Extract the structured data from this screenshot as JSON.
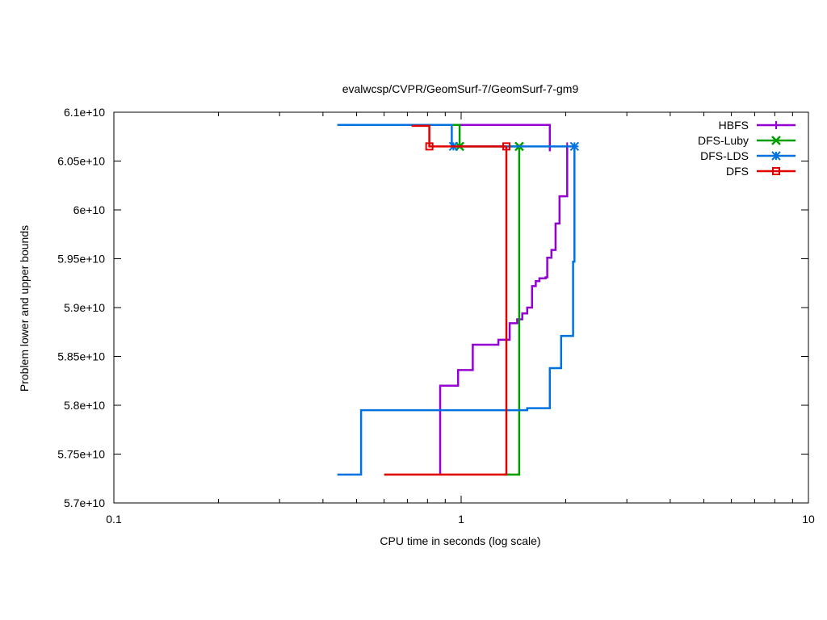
{
  "chart_data": {
    "type": "line",
    "title": "evalwcsp/CVPR/GeomSurf-7/GeomSurf-7-gm9",
    "xlabel": "CPU time in seconds (log scale)",
    "ylabel": "Problem lower and upper bounds",
    "xscale": "log",
    "xlim": [
      0.1,
      10
    ],
    "ylim": [
      57000000000,
      61000000000
    ],
    "xticks": [
      0.1,
      1,
      10
    ],
    "xtick_labels": [
      "0.1",
      "1",
      "10"
    ],
    "yticks": [
      57000000000,
      57500000000,
      58000000000,
      58500000000,
      59000000000,
      59500000000,
      60000000000,
      60500000000,
      61000000000
    ],
    "ytick_labels": [
      "5.7e+10",
      "5.75e+10",
      "5.8e+10",
      "5.85e+10",
      "5.9e+10",
      "5.95e+10",
      "6e+10",
      "6.05e+10",
      "6.1e+10"
    ],
    "grid": false,
    "legend_position": "top-right",
    "series": [
      {
        "name": "HBFS",
        "color": "#9400d3",
        "marker": "plus",
        "marker_points": [
          [
            2.02,
            60650000000
          ]
        ],
        "upper": [
          [
            0.84,
            60870000000
          ],
          [
            1.8,
            60870000000
          ],
          [
            1.8,
            60600000000
          ]
        ],
        "lower": [
          [
            0.87,
            57290000000
          ],
          [
            0.87,
            58200000000
          ],
          [
            0.98,
            58200000000
          ],
          [
            0.98,
            58360000000
          ],
          [
            1.08,
            58360000000
          ],
          [
            1.08,
            58620000000
          ],
          [
            1.28,
            58620000000
          ],
          [
            1.28,
            58670000000
          ],
          [
            1.38,
            58670000000
          ],
          [
            1.38,
            58840000000
          ],
          [
            1.45,
            58840000000
          ],
          [
            1.45,
            58880000000
          ],
          [
            1.5,
            58880000000
          ],
          [
            1.5,
            58940000000
          ],
          [
            1.55,
            58940000000
          ],
          [
            1.55,
            59000000000
          ],
          [
            1.6,
            59000000000
          ],
          [
            1.6,
            59220000000
          ],
          [
            1.64,
            59220000000
          ],
          [
            1.64,
            59270000000
          ],
          [
            1.68,
            59270000000
          ],
          [
            1.68,
            59300000000
          ],
          [
            1.75,
            59300000000
          ],
          [
            1.75,
            59310000000
          ],
          [
            1.77,
            59310000000
          ],
          [
            1.77,
            59510000000
          ],
          [
            1.82,
            59510000000
          ],
          [
            1.82,
            59590000000
          ],
          [
            1.87,
            59590000000
          ],
          [
            1.87,
            59860000000
          ],
          [
            1.92,
            59860000000
          ],
          [
            1.92,
            60140000000
          ],
          [
            2.02,
            60140000000
          ],
          [
            2.02,
            60650000000
          ]
        ]
      },
      {
        "name": "DFS-Luby",
        "color": "#009e00",
        "marker": "cross",
        "marker_points": [
          [
            0.99,
            60650000000
          ],
          [
            1.47,
            60650000000
          ]
        ],
        "upper": [
          [
            0.72,
            60870000000
          ],
          [
            0.99,
            60870000000
          ],
          [
            0.99,
            60650000000
          ],
          [
            1.47,
            60650000000
          ]
        ],
        "lower": [
          [
            1.32,
            57290000000
          ],
          [
            1.47,
            57290000000
          ],
          [
            1.47,
            60650000000
          ]
        ]
      },
      {
        "name": "DFS-LDS",
        "color": "#0072e0",
        "marker": "star",
        "marker_points": [
          [
            0.95,
            60650000000
          ],
          [
            2.12,
            60650000000
          ]
        ],
        "upper": [
          [
            0.44,
            60870000000
          ],
          [
            0.94,
            60870000000
          ],
          [
            0.94,
            60650000000
          ],
          [
            2.12,
            60650000000
          ]
        ],
        "lower": [
          [
            0.44,
            57290000000
          ],
          [
            0.515,
            57290000000
          ],
          [
            0.515,
            57950000000
          ],
          [
            1.55,
            57950000000
          ],
          [
            1.55,
            57970000000
          ],
          [
            1.8,
            57970000000
          ],
          [
            1.8,
            58380000000
          ],
          [
            1.94,
            58380000000
          ],
          [
            1.94,
            58710000000
          ],
          [
            2.1,
            58710000000
          ],
          [
            2.1,
            59470000000
          ],
          [
            2.12,
            59470000000
          ],
          [
            2.12,
            60650000000
          ]
        ]
      },
      {
        "name": "DFS",
        "color": "#e00000",
        "marker": "square",
        "marker_points": [
          [
            0.81,
            60650000000
          ],
          [
            1.35,
            60650000000
          ]
        ],
        "upper": [
          [
            0.72,
            60860000000
          ],
          [
            0.81,
            60860000000
          ],
          [
            0.81,
            60650000000
          ],
          [
            1.35,
            60650000000
          ]
        ],
        "lower": [
          [
            0.6,
            57290000000
          ],
          [
            1.35,
            57290000000
          ],
          [
            1.35,
            60650000000
          ]
        ]
      }
    ]
  }
}
